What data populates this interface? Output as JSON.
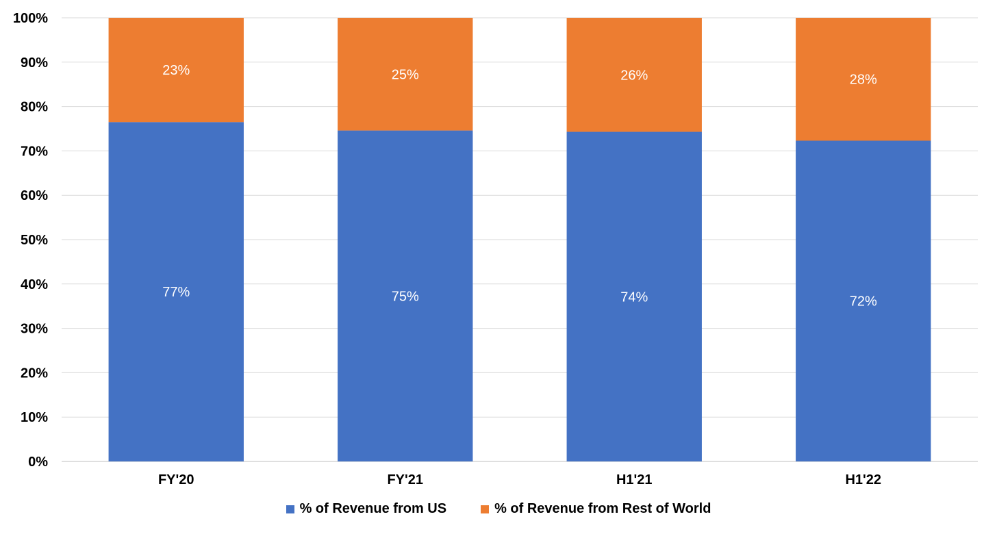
{
  "chart_data": {
    "type": "bar",
    "stacked": true,
    "categories": [
      "FY'20",
      "FY'21",
      "H1'21",
      "H1'22"
    ],
    "series": [
      {
        "name": "% of Revenue from US",
        "values": [
          76.5,
          74.6,
          74.3,
          72.3
        ],
        "labels": [
          "77%",
          "75%",
          "74%",
          "72%"
        ],
        "color": "#4472C4"
      },
      {
        "name": "% of Revenue from Rest of World",
        "values": [
          23.5,
          25.4,
          25.7,
          27.7
        ],
        "labels": [
          "23%",
          "25%",
          "26%",
          "28%"
        ],
        "color": "#ED7D31"
      }
    ],
    "ylim": [
      0,
      100
    ],
    "yticks": [
      "0%",
      "10%",
      "20%",
      "30%",
      "40%",
      "50%",
      "60%",
      "70%",
      "80%",
      "90%",
      "100%"
    ],
    "grid": true,
    "legend_position": "bottom"
  }
}
